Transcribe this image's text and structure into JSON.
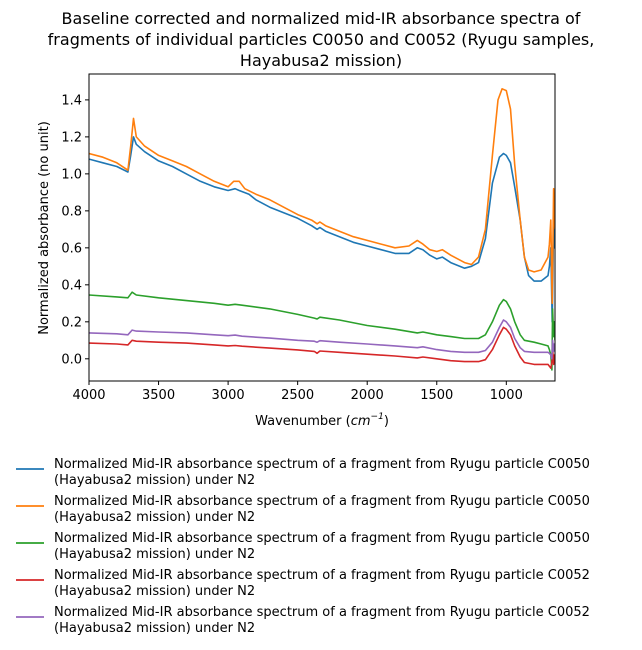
{
  "chart_data": {
    "type": "line",
    "title_lines": [
      "Baseline corrected and normalized mid-IR absorbance spectra of",
      "fragments of individual particles C0050 and C0052 (Ryugu samples,",
      "Hayabusa2 mission)"
    ],
    "xlabel": "Wavenumber",
    "xlabel_unit_base": "cm",
    "xlabel_unit_exp": "−1",
    "ylabel": "Normalized absorbance (no unit)",
    "xlim": [
      4000,
      650
    ],
    "x_reversed": true,
    "ylim": [
      -0.12,
      1.54
    ],
    "xticks": [
      4000,
      3500,
      3000,
      2500,
      2000,
      1500,
      1000
    ],
    "xtick_labels": [
      "4000",
      "3500",
      "3000",
      "2500",
      "2000",
      "1500",
      "1000"
    ],
    "yticks": [
      0.0,
      0.2,
      0.4,
      0.6,
      0.8,
      1.0,
      1.2,
      1.4
    ],
    "ytick_labels": [
      "0.0",
      "0.2",
      "0.4",
      "0.6",
      "0.8",
      "1.0",
      "1.2",
      "1.4"
    ],
    "grid": false,
    "legend_position": "below",
    "series": [
      {
        "name": "Normalized Mid-IR absorbance spectrum of a fragment from Ryugu particle C0050 (Hayabusa2 mission) under N2",
        "legend_lines": [
          "Normalized Mid-IR absorbance spectrum of a fragment from Ryugu particle C0050",
          "(Hayabusa2 mission) under N2"
        ],
        "color": "#1f77b4",
        "points": [
          [
            4000,
            1.08
          ],
          [
            3900,
            1.06
          ],
          [
            3800,
            1.04
          ],
          [
            3720,
            1.01
          ],
          [
            3700,
            1.1
          ],
          [
            3680,
            1.2
          ],
          [
            3660,
            1.16
          ],
          [
            3600,
            1.12
          ],
          [
            3500,
            1.07
          ],
          [
            3400,
            1.04
          ],
          [
            3300,
            1.0
          ],
          [
            3200,
            0.96
          ],
          [
            3100,
            0.93
          ],
          [
            3000,
            0.91
          ],
          [
            2950,
            0.92
          ],
          [
            2920,
            0.91
          ],
          [
            2850,
            0.89
          ],
          [
            2800,
            0.86
          ],
          [
            2700,
            0.82
          ],
          [
            2600,
            0.79
          ],
          [
            2500,
            0.76
          ],
          [
            2400,
            0.72
          ],
          [
            2360,
            0.7
          ],
          [
            2340,
            0.71
          ],
          [
            2300,
            0.69
          ],
          [
            2200,
            0.66
          ],
          [
            2100,
            0.63
          ],
          [
            2000,
            0.61
          ],
          [
            1900,
            0.59
          ],
          [
            1800,
            0.57
          ],
          [
            1700,
            0.57
          ],
          [
            1640,
            0.6
          ],
          [
            1600,
            0.59
          ],
          [
            1550,
            0.56
          ],
          [
            1500,
            0.54
          ],
          [
            1460,
            0.55
          ],
          [
            1400,
            0.52
          ],
          [
            1300,
            0.49
          ],
          [
            1250,
            0.5
          ],
          [
            1200,
            0.52
          ],
          [
            1150,
            0.65
          ],
          [
            1100,
            0.95
          ],
          [
            1050,
            1.09
          ],
          [
            1020,
            1.11
          ],
          [
            1000,
            1.1
          ],
          [
            970,
            1.06
          ],
          [
            940,
            0.93
          ],
          [
            900,
            0.75
          ],
          [
            870,
            0.55
          ],
          [
            840,
            0.45
          ],
          [
            800,
            0.42
          ],
          [
            750,
            0.42
          ],
          [
            700,
            0.45
          ],
          [
            690,
            0.5
          ],
          [
            680,
            0.6
          ],
          [
            670,
            0.2
          ],
          [
            665,
            0.45
          ],
          [
            660,
            0.75
          ],
          [
            655,
            0.6
          ],
          [
            650,
            0.6
          ]
        ]
      },
      {
        "name": "Normalized Mid-IR absorbance spectrum of a fragment from Ryugu particle C0050 (Hayabusa2 mission) under N2",
        "legend_lines": [
          "Normalized Mid-IR absorbance spectrum of a fragment from Ryugu particle C0050",
          "(Hayabusa2 mission) under N2"
        ],
        "color": "#ff7f0e",
        "points": [
          [
            4000,
            1.11
          ],
          [
            3900,
            1.09
          ],
          [
            3800,
            1.06
          ],
          [
            3720,
            1.02
          ],
          [
            3700,
            1.15
          ],
          [
            3680,
            1.3
          ],
          [
            3660,
            1.2
          ],
          [
            3600,
            1.15
          ],
          [
            3500,
            1.1
          ],
          [
            3400,
            1.07
          ],
          [
            3300,
            1.04
          ],
          [
            3200,
            1.0
          ],
          [
            3100,
            0.96
          ],
          [
            3000,
            0.93
          ],
          [
            2960,
            0.96
          ],
          [
            2920,
            0.96
          ],
          [
            2880,
            0.92
          ],
          [
            2800,
            0.89
          ],
          [
            2700,
            0.86
          ],
          [
            2600,
            0.82
          ],
          [
            2500,
            0.78
          ],
          [
            2400,
            0.75
          ],
          [
            2360,
            0.73
          ],
          [
            2340,
            0.74
          ],
          [
            2300,
            0.72
          ],
          [
            2200,
            0.69
          ],
          [
            2100,
            0.66
          ],
          [
            2000,
            0.64
          ],
          [
            1900,
            0.62
          ],
          [
            1800,
            0.6
          ],
          [
            1700,
            0.61
          ],
          [
            1640,
            0.64
          ],
          [
            1600,
            0.62
          ],
          [
            1550,
            0.59
          ],
          [
            1500,
            0.58
          ],
          [
            1460,
            0.59
          ],
          [
            1400,
            0.56
          ],
          [
            1300,
            0.52
          ],
          [
            1250,
            0.51
          ],
          [
            1200,
            0.55
          ],
          [
            1150,
            0.7
          ],
          [
            1100,
            1.1
          ],
          [
            1060,
            1.4
          ],
          [
            1030,
            1.46
          ],
          [
            1000,
            1.45
          ],
          [
            970,
            1.35
          ],
          [
            940,
            1.05
          ],
          [
            900,
            0.75
          ],
          [
            870,
            0.55
          ],
          [
            840,
            0.48
          ],
          [
            800,
            0.47
          ],
          [
            750,
            0.48
          ],
          [
            700,
            0.55
          ],
          [
            690,
            0.62
          ],
          [
            680,
            0.75
          ],
          [
            670,
            0.3
          ],
          [
            665,
            0.6
          ],
          [
            660,
            0.92
          ],
          [
            655,
            0.75
          ],
          [
            650,
            0.7
          ]
        ]
      },
      {
        "name": "Normalized Mid-IR absorbance spectrum of a fragment from Ryugu particle C0050 (Hayabusa2 mission) under N2",
        "legend_lines": [
          "Normalized Mid-IR absorbance spectrum of a fragment from Ryugu particle C0050",
          "(Hayabusa2 mission) under N2"
        ],
        "color": "#2ca02c",
        "points": [
          [
            4000,
            0.345
          ],
          [
            3800,
            0.335
          ],
          [
            3720,
            0.33
          ],
          [
            3690,
            0.36
          ],
          [
            3660,
            0.345
          ],
          [
            3500,
            0.33
          ],
          [
            3300,
            0.315
          ],
          [
            3100,
            0.3
          ],
          [
            3000,
            0.29
          ],
          [
            2950,
            0.295
          ],
          [
            2900,
            0.29
          ],
          [
            2700,
            0.27
          ],
          [
            2500,
            0.24
          ],
          [
            2380,
            0.22
          ],
          [
            2360,
            0.215
          ],
          [
            2340,
            0.225
          ],
          [
            2200,
            0.21
          ],
          [
            2000,
            0.18
          ],
          [
            1800,
            0.16
          ],
          [
            1640,
            0.14
          ],
          [
            1600,
            0.145
          ],
          [
            1500,
            0.13
          ],
          [
            1400,
            0.12
          ],
          [
            1300,
            0.11
          ],
          [
            1200,
            0.11
          ],
          [
            1150,
            0.13
          ],
          [
            1100,
            0.2
          ],
          [
            1050,
            0.29
          ],
          [
            1020,
            0.32
          ],
          [
            1000,
            0.31
          ],
          [
            970,
            0.27
          ],
          [
            940,
            0.2
          ],
          [
            900,
            0.13
          ],
          [
            870,
            0.1
          ],
          [
            800,
            0.09
          ],
          [
            750,
            0.08
          ],
          [
            700,
            0.07
          ],
          [
            690,
            0.05
          ],
          [
            680,
            0.02
          ],
          [
            672,
            -0.06
          ],
          [
            667,
            0.27
          ],
          [
            660,
            0.12
          ],
          [
            655,
            0.2
          ],
          [
            650,
            0.1
          ]
        ]
      },
      {
        "name": "Normalized Mid-IR absorbance spectrum of a fragment from Ryugu particle C0052 (Hayabusa2 mission) under N2",
        "legend_lines": [
          "Normalized Mid-IR absorbance spectrum of a fragment from Ryugu particle C0052",
          "(Hayabusa2 mission) under N2"
        ],
        "color": "#d62728",
        "points": [
          [
            4000,
            0.085
          ],
          [
            3800,
            0.08
          ],
          [
            3720,
            0.075
          ],
          [
            3690,
            0.1
          ],
          [
            3660,
            0.095
          ],
          [
            3500,
            0.09
          ],
          [
            3300,
            0.085
          ],
          [
            3100,
            0.075
          ],
          [
            3000,
            0.07
          ],
          [
            2950,
            0.072
          ],
          [
            2900,
            0.068
          ],
          [
            2700,
            0.058
          ],
          [
            2500,
            0.048
          ],
          [
            2380,
            0.04
          ],
          [
            2360,
            0.03
          ],
          [
            2340,
            0.042
          ],
          [
            2200,
            0.035
          ],
          [
            2000,
            0.025
          ],
          [
            1800,
            0.015
          ],
          [
            1640,
            0.005
          ],
          [
            1600,
            0.01
          ],
          [
            1500,
            0.0
          ],
          [
            1400,
            -0.01
          ],
          [
            1300,
            -0.015
          ],
          [
            1200,
            -0.015
          ],
          [
            1150,
            -0.005
          ],
          [
            1100,
            0.05
          ],
          [
            1050,
            0.13
          ],
          [
            1020,
            0.17
          ],
          [
            1000,
            0.16
          ],
          [
            970,
            0.13
          ],
          [
            940,
            0.07
          ],
          [
            900,
            0.01
          ],
          [
            870,
            -0.02
          ],
          [
            800,
            -0.03
          ],
          [
            750,
            -0.03
          ],
          [
            700,
            -0.03
          ],
          [
            690,
            -0.04
          ],
          [
            680,
            -0.05
          ],
          [
            672,
            -0.02
          ],
          [
            667,
            0.05
          ],
          [
            660,
            -0.03
          ],
          [
            655,
            0.02
          ],
          [
            650,
            0.0
          ]
        ]
      },
      {
        "name": "Normalized Mid-IR absorbance spectrum of a fragment from Ryugu particle C0052 (Hayabusa2 mission) under N2",
        "legend_lines": [
          "Normalized Mid-IR absorbance spectrum of a fragment from Ryugu particle C0052",
          "(Hayabusa2 mission) under N2"
        ],
        "color": "#9467bd",
        "points": [
          [
            4000,
            0.14
          ],
          [
            3800,
            0.135
          ],
          [
            3720,
            0.13
          ],
          [
            3690,
            0.155
          ],
          [
            3660,
            0.15
          ],
          [
            3500,
            0.145
          ],
          [
            3300,
            0.14
          ],
          [
            3100,
            0.13
          ],
          [
            3000,
            0.125
          ],
          [
            2950,
            0.128
          ],
          [
            2900,
            0.122
          ],
          [
            2700,
            0.112
          ],
          [
            2500,
            0.1
          ],
          [
            2380,
            0.095
          ],
          [
            2360,
            0.09
          ],
          [
            2340,
            0.098
          ],
          [
            2200,
            0.09
          ],
          [
            2000,
            0.08
          ],
          [
            1800,
            0.07
          ],
          [
            1640,
            0.06
          ],
          [
            1600,
            0.065
          ],
          [
            1500,
            0.05
          ],
          [
            1400,
            0.04
          ],
          [
            1300,
            0.035
          ],
          [
            1200,
            0.035
          ],
          [
            1150,
            0.045
          ],
          [
            1100,
            0.09
          ],
          [
            1050,
            0.17
          ],
          [
            1020,
            0.21
          ],
          [
            1000,
            0.2
          ],
          [
            970,
            0.17
          ],
          [
            940,
            0.11
          ],
          [
            900,
            0.06
          ],
          [
            870,
            0.04
          ],
          [
            800,
            0.035
          ],
          [
            750,
            0.035
          ],
          [
            700,
            0.035
          ],
          [
            690,
            0.03
          ],
          [
            680,
            0.02
          ],
          [
            672,
            0.0
          ],
          [
            667,
            0.1
          ],
          [
            660,
            0.04
          ],
          [
            655,
            0.08
          ],
          [
            650,
            0.05
          ]
        ]
      }
    ]
  }
}
